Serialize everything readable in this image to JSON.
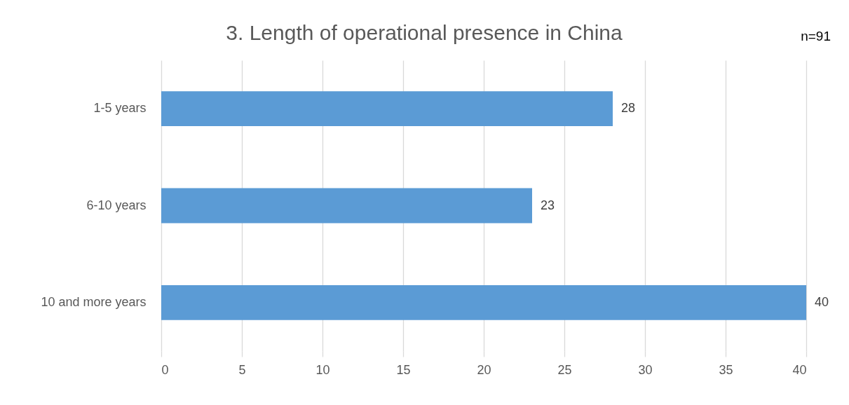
{
  "chart_data": {
    "type": "bar",
    "orientation": "horizontal",
    "title": "3. Length of operational presence in China",
    "categories": [
      "1-5 years",
      "6-10 years",
      "10 and more years"
    ],
    "values": [
      28,
      23,
      40
    ],
    "color": "#5b9bd5",
    "xlim": [
      0,
      40
    ],
    "xticks": [
      0,
      5,
      10,
      15,
      20,
      25,
      30,
      35,
      40
    ],
    "grid": "x",
    "data_labels": true,
    "annotations": [
      "n=91"
    ]
  }
}
